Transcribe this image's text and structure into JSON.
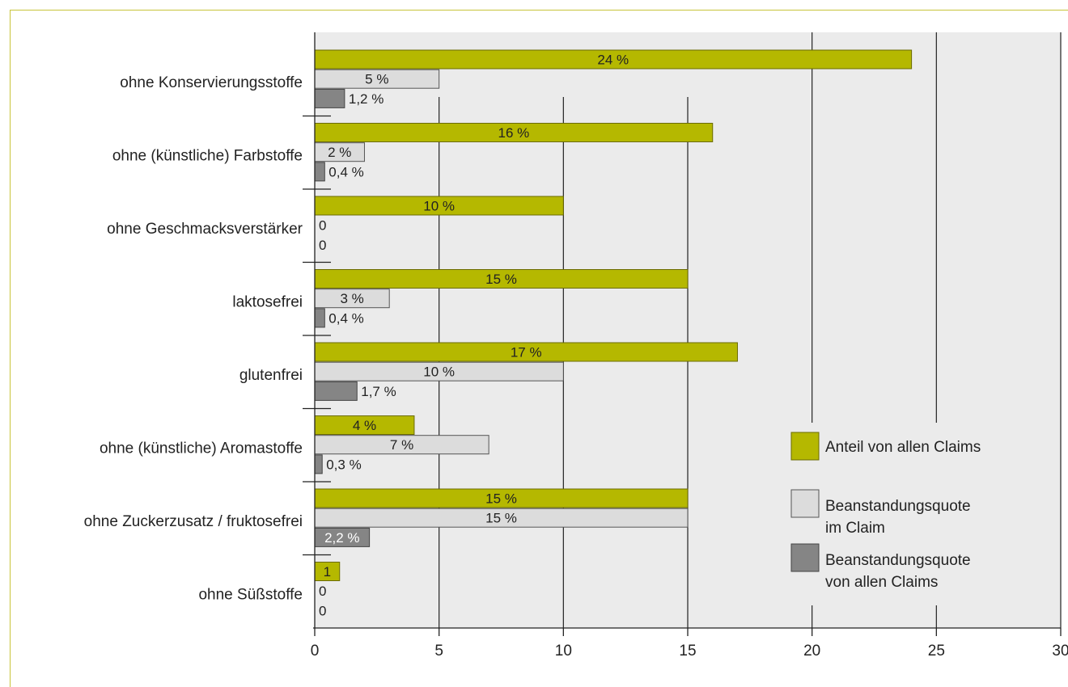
{
  "chart_data": {
    "type": "bar",
    "orientation": "horizontal",
    "title": "",
    "xlabel": "",
    "ylabel": "",
    "xlim": [
      0,
      30
    ],
    "x_ticks": [
      0,
      5,
      10,
      15,
      20,
      25,
      30
    ],
    "grid": "vertical",
    "legend_position": "right",
    "categories": [
      "ohne Konservierungsstoffe",
      "ohne (künstliche) Farbstoffe",
      "ohne Geschmacksverstärker",
      "laktosefrei",
      "glutenfrei",
      "ohne (künstliche) Aromastoffe",
      "ohne Zuckerzusatz / fruktosefrei",
      "ohne Süßstoffe"
    ],
    "series": [
      {
        "name": "Anteil von allen Claims",
        "color": "#b5b800",
        "values": [
          24,
          16,
          10,
          15,
          17,
          4,
          15,
          1
        ],
        "labels": [
          "24 %",
          "16 %",
          "10 %",
          "15 %",
          "17 %",
          "4 %",
          "15 %",
          "1"
        ]
      },
      {
        "name": "Beanstandungsquote im Claim",
        "color": "#dcdcdc",
        "values": [
          5,
          2,
          0,
          3,
          10,
          7,
          15,
          0
        ],
        "labels": [
          "5 %",
          "2 %",
          "0",
          "3 %",
          "10 %",
          "7 %",
          "15 %",
          "0"
        ]
      },
      {
        "name": "Beanstandungsquote von allen Claims",
        "color": "#858585",
        "values": [
          1.2,
          0.4,
          0,
          0.4,
          1.7,
          0.3,
          2.2,
          0
        ],
        "labels": [
          "1,2 %",
          "0,4 %",
          "0",
          "0,4 %",
          "1,7 %",
          "0,3 %",
          "2,2 %",
          "0"
        ]
      }
    ],
    "legend": [
      {
        "lines": [
          "Anteil von allen Claims"
        ]
      },
      {
        "lines": [
          "Beanstandungsquote",
          "im Claim"
        ]
      },
      {
        "lines": [
          "Beanstandungsquote",
          "von allen Claims"
        ]
      }
    ]
  }
}
